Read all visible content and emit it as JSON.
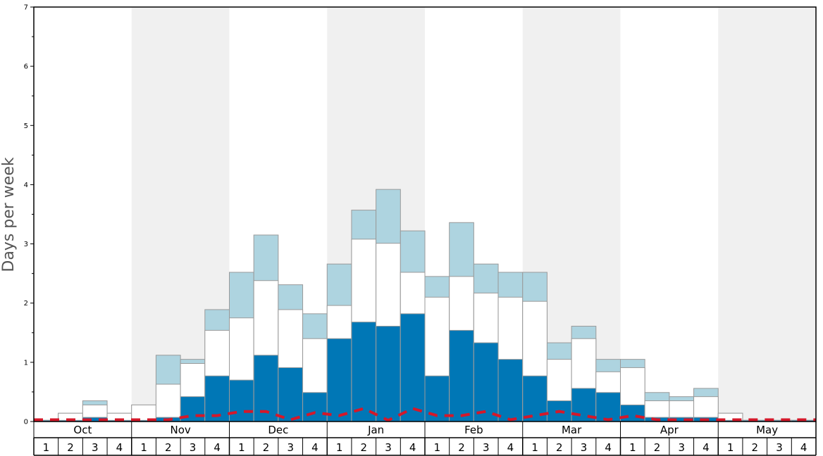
{
  "chart_data": {
    "type": "bar",
    "ylabel": "Days per week",
    "ylim": [
      0,
      7
    ],
    "y_ticks": [
      "0",
      "1",
      "2",
      "3",
      "4",
      "5",
      "6",
      "7"
    ],
    "months": [
      "Oct",
      "Nov",
      "Dec",
      "Jan",
      "Feb",
      "Mar",
      "Apr",
      "May"
    ],
    "week_labels": [
      "1",
      "2",
      "3",
      "4"
    ],
    "categories": [
      "Oct 1",
      "Oct 2",
      "Oct 3",
      "Oct 4",
      "Nov 1",
      "Nov 2",
      "Nov 3",
      "Nov 4",
      "Dec 1",
      "Dec 2",
      "Dec 3",
      "Dec 4",
      "Jan 1",
      "Jan 2",
      "Jan 3",
      "Jan 4",
      "Feb 1",
      "Feb 2",
      "Feb 3",
      "Feb 4",
      "Mar 1",
      "Mar 2",
      "Mar 3",
      "Mar 4",
      "Apr 1",
      "Apr 2",
      "Apr 3",
      "Apr 4",
      "May 1",
      "May 2",
      "May 3",
      "May 4"
    ],
    "series": [
      {
        "values": [
          0.02,
          0.02,
          0.07,
          0.02,
          0.02,
          0.07,
          0.42,
          0.77,
          0.7,
          1.12,
          0.91,
          0.49,
          1.4,
          1.68,
          1.61,
          1.82,
          0.77,
          1.54,
          1.33,
          1.05,
          0.77,
          0.35,
          0.56,
          0.49,
          0.28,
          0.07,
          0.07,
          0.07,
          0.02,
          0.02,
          0.02,
          0.02
        ]
      },
      {
        "values": [
          0.02,
          0.14,
          0.28,
          0.14,
          0.28,
          0.63,
          0.98,
          1.54,
          1.75,
          2.38,
          1.89,
          1.4,
          1.96,
          3.08,
          3.01,
          2.52,
          2.1,
          2.45,
          2.17,
          2.1,
          2.03,
          1.05,
          1.4,
          0.84,
          0.91,
          0.35,
          0.35,
          0.42,
          0.14,
          0.02,
          0.02,
          0.02
        ]
      },
      {
        "values": [
          0.02,
          0.14,
          0.35,
          0.14,
          0.28,
          1.12,
          1.05,
          1.89,
          2.52,
          3.15,
          2.31,
          1.82,
          2.66,
          3.57,
          3.92,
          3.22,
          2.45,
          3.36,
          2.66,
          2.52,
          2.52,
          1.33,
          1.61,
          1.05,
          1.05,
          0.49,
          0.42,
          0.56,
          0.14,
          0.02,
          0.02,
          0.02
        ]
      },
      {
        "values": [
          0.03,
          0.03,
          0.03,
          0.03,
          0.03,
          0.03,
          0.1,
          0.1,
          0.17,
          0.17,
          0.03,
          0.15,
          0.1,
          0.22,
          0.02,
          0.22,
          0.1,
          0.1,
          0.17,
          0.03,
          0.1,
          0.17,
          0.1,
          0.03,
          0.1,
          0.03,
          0.03,
          0.03,
          0.03,
          0.03,
          0.03,
          0.03
        ]
      }
    ],
    "colors": {
      "top": "#aed4e0",
      "middle": "#ffffff",
      "bottom": "#0077b6",
      "line": "#d4182a",
      "shade": "#f0f0f0",
      "bar_stroke": "#9a9a9a"
    }
  }
}
